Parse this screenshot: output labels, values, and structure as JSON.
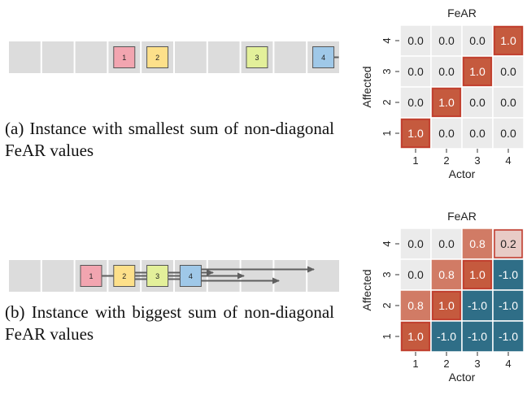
{
  "colors": {
    "cell_bg": "#dcdcdc",
    "agent_colors": [
      "#f2a5b0",
      "#fde08a",
      "#e3f09a",
      "#9fc8e8"
    ],
    "arrow": "#5f5f5f",
    "heat_zero": "#ebebeb",
    "heat_positive": "#c55a3e",
    "heat_negative": "#2f6e87",
    "selected_outline": "#c0392b"
  },
  "panels": [
    {
      "id": "a",
      "caption": "(a) Instance with smallest sum of non-diagonal FeAR values",
      "agents": [
        "1",
        "2",
        "3",
        "4"
      ],
      "matrix": {
        "title": "FeAR",
        "xlabel": "Actor",
        "ylabel": "Affected",
        "x_ticks": [
          "1",
          "2",
          "3",
          "4"
        ],
        "y_ticks": [
          "4",
          "3",
          "2",
          "1"
        ],
        "rows": [
          [
            "0.0",
            "0.0",
            "0.0",
            "1.0"
          ],
          [
            "0.0",
            "0.0",
            "1.0",
            "0.0"
          ],
          [
            "0.0",
            "1.0",
            "0.0",
            "0.0"
          ],
          [
            "1.0",
            "0.0",
            "0.0",
            "0.0"
          ]
        ]
      }
    },
    {
      "id": "b",
      "caption": "(b) Instance with biggest sum of non-diagonal FeAR values",
      "agents": [
        "1",
        "2",
        "3",
        "4"
      ],
      "matrix": {
        "title": "FeAR",
        "xlabel": "Actor",
        "ylabel": "Affected",
        "x_ticks": [
          "1",
          "2",
          "3",
          "4"
        ],
        "y_ticks": [
          "4",
          "3",
          "2",
          "1"
        ],
        "rows": [
          [
            "0.0",
            "0.0",
            "0.8",
            "0.2"
          ],
          [
            "0.0",
            "0.8",
            "1.0",
            "-1.0"
          ],
          [
            "0.8",
            "1.0",
            "-1.0",
            "-1.0"
          ],
          [
            "1.0",
            "-1.0",
            "-1.0",
            "-1.0"
          ]
        ]
      }
    }
  ]
}
